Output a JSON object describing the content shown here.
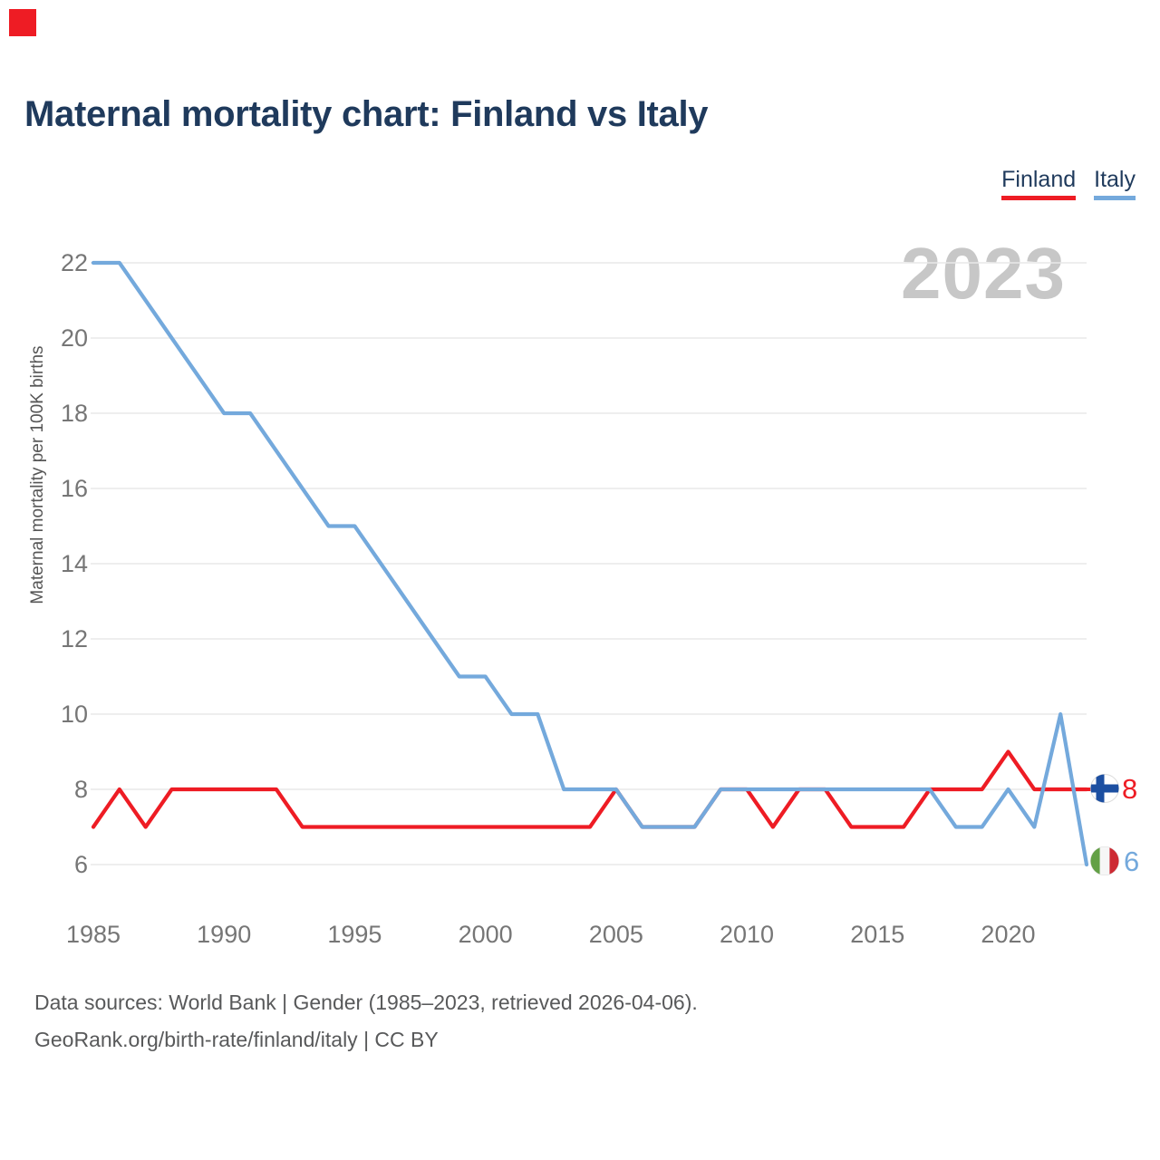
{
  "brand_square_color": "#ee1c24",
  "title": "Maternal mortality chart: Finland vs Italy",
  "legend": [
    {
      "label": "Finland",
      "color": "#ee1c24"
    },
    {
      "label": "Italy",
      "color": "#74a9dc"
    }
  ],
  "watermark": "2023",
  "chart_data": {
    "type": "line",
    "title": "Maternal mortality chart: Finland vs Italy",
    "ylabel": "Maternal mortality per 100K births",
    "xlabel": "",
    "ylim": [
      6,
      22
    ],
    "grid": "horizontal",
    "legend_position": "top-right",
    "x": [
      1985,
      1986,
      1987,
      1988,
      1989,
      1990,
      1991,
      1992,
      1993,
      1994,
      1995,
      1996,
      1997,
      1998,
      1999,
      2000,
      2001,
      2002,
      2003,
      2004,
      2005,
      2006,
      2007,
      2008,
      2009,
      2010,
      2011,
      2012,
      2013,
      2014,
      2015,
      2016,
      2017,
      2018,
      2019,
      2020,
      2021,
      2022,
      2023
    ],
    "xticks": [
      1985,
      1990,
      1995,
      2000,
      2005,
      2010,
      2015,
      2020
    ],
    "yticks": [
      6,
      8,
      10,
      12,
      14,
      16,
      18,
      20,
      22
    ],
    "series": [
      {
        "name": "Finland",
        "color": "#ee1c24",
        "values": [
          7,
          8,
          7,
          8,
          8,
          8,
          8,
          8,
          7,
          7,
          7,
          7,
          7,
          7,
          7,
          7,
          7,
          7,
          7,
          7,
          8,
          7,
          7,
          7,
          8,
          8,
          7,
          8,
          8,
          7,
          7,
          7,
          8,
          8,
          8,
          9,
          8,
          8,
          8
        ]
      },
      {
        "name": "Italy",
        "color": "#74a9dc",
        "values": [
          22,
          22,
          21,
          20,
          19,
          18,
          18,
          17,
          16,
          15,
          15,
          14,
          13,
          12,
          11,
          11,
          10,
          10,
          8,
          8,
          8,
          7,
          7,
          7,
          8,
          8,
          8,
          8,
          8,
          8,
          8,
          8,
          8,
          7,
          7,
          8,
          7,
          10,
          6
        ]
      }
    ],
    "end_labels": {
      "finland": "8",
      "italy": "6"
    }
  },
  "footer": {
    "line1": "Data sources: World Bank | Gender (1985–2023, retrieved 2026-04-06).",
    "line2": "GeoRank.org/birth-rate/finland/italy | CC BY"
  }
}
